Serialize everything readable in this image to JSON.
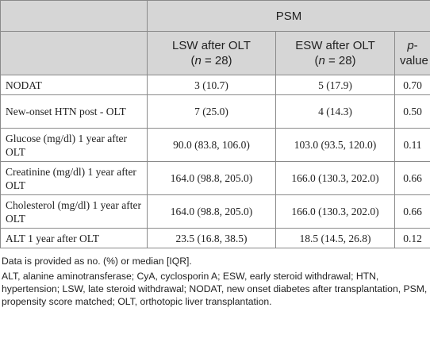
{
  "table": {
    "group_header": "PSM",
    "columns": [
      {
        "title": "LSW after OLT",
        "n_open": "(",
        "n": "n",
        "n_rest": " = 28)"
      },
      {
        "title": "ESW after OLT",
        "n_open": "(",
        "n": "n",
        "n_rest": " = 28)"
      }
    ],
    "pvalue_header": [
      "p",
      "-",
      "value"
    ],
    "rows": [
      [
        "NODAT",
        "3 (10.7)",
        "5 (17.9)",
        "0.70"
      ],
      [
        "New-onset HTN post - OLT",
        "7 (25.0)",
        "4 (14.3)",
        "0.50"
      ],
      [
        "Glucose (mg/dl) 1 year after OLT",
        "90.0 (83.8, 106.0)",
        "103.0 (93.5, 120.0)",
        "0.11"
      ],
      [
        "Creatinine (mg/dl) 1 year after OLT",
        "164.0 (98.8, 205.0)",
        "166.0 (130.3, 202.0)",
        "0.66"
      ],
      [
        "Cholesterol (mg/dl) 1 year after OLT",
        "164.0 (98.8, 205.0)",
        "166.0 (130.3, 202.0)",
        "0.66"
      ],
      [
        "ALT 1 year after OLT",
        "23.5 (16.8, 38.5)",
        "18.5 (14.5, 26.8)",
        "0.12"
      ]
    ]
  },
  "footnotes": [
    "Data is provided as no. (%) or median [IQR].",
    "ALT, alanine aminotransferase; CyA, cyclosporin A; ESW, early steroid withdrawal; HTN, hypertension; LSW, late steroid withdrawal; NODAT, new onset diabetes after transplantation, PSM, propensity score matched; OLT, orthotopic liver transplantation."
  ]
}
